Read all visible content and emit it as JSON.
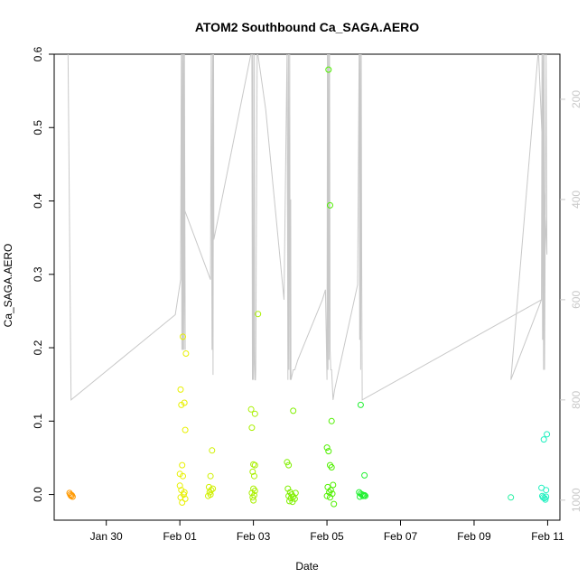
{
  "chart_data": {
    "type": "scatter",
    "title": "ATOM2 Southbound Ca_SAGA.AERO",
    "xlabel": "Date",
    "ylabel": "Ca_SAGA.AERO",
    "xlim": [
      "2017-01-28T14:00",
      "2017-02-11T08:00"
    ],
    "ylim": [
      -0.035,
      0.6
    ],
    "x_ticks": [
      {
        "date": "2017-01-30",
        "label": "Jan 30"
      },
      {
        "date": "2017-02-01",
        "label": "Feb 01"
      },
      {
        "date": "2017-02-03",
        "label": "Feb 03"
      },
      {
        "date": "2017-02-05",
        "label": "Feb 05"
      },
      {
        "date": "2017-02-07",
        "label": "Feb 07"
      },
      {
        "date": "2017-02-09",
        "label": "Feb 09"
      },
      {
        "date": "2017-02-11",
        "label": "Feb 11"
      }
    ],
    "y_ticks": [
      0.0,
      0.1,
      0.2,
      0.3,
      0.4,
      0.5,
      0.6
    ],
    "y_tick_labels": [
      "0.0",
      "0.1",
      "0.2",
      "0.3",
      "0.4",
      "0.5",
      "0.6"
    ],
    "y2_ticks": [
      200,
      400,
      600,
      800,
      1000
    ],
    "y2_range": [
      1040,
      110
    ],
    "grid": false,
    "marker": "open-circle",
    "points": [
      {
        "x": "2017-01-29T00:00",
        "y": 0.002,
        "color": "#ff9900"
      },
      {
        "x": "2017-01-29T01:00",
        "y": -0.002,
        "color": "#ff9900"
      },
      {
        "x": "2017-01-29T02:00",
        "y": -0.003,
        "color": "#ff9900"
      },
      {
        "x": "2017-01-29T00:30",
        "y": 0.0,
        "color": "#ff9900"
      },
      {
        "x": "2017-01-29T01:30",
        "y": -0.001,
        "color": "#ff9900"
      },
      {
        "x": "2017-02-01T00:30",
        "y": 0.143,
        "color": "#e8f000"
      },
      {
        "x": "2017-02-01T01:00",
        "y": 0.122,
        "color": "#e8f000"
      },
      {
        "x": "2017-02-01T03:00",
        "y": 0.125,
        "color": "#e8f000"
      },
      {
        "x": "2017-02-01T02:00",
        "y": 0.215,
        "color": "#e8f000"
      },
      {
        "x": "2017-02-01T04:00",
        "y": 0.192,
        "color": "#e8f000"
      },
      {
        "x": "2017-02-01T03:30",
        "y": 0.088,
        "color": "#e8f000"
      },
      {
        "x": "2017-02-01T01:30",
        "y": 0.04,
        "color": "#e8f000"
      },
      {
        "x": "2017-02-01T00:00",
        "y": 0.028,
        "color": "#e8f000"
      },
      {
        "x": "2017-02-01T02:00",
        "y": 0.025,
        "color": "#e8f000"
      },
      {
        "x": "2017-02-01T00:00",
        "y": 0.012,
        "color": "#e8f000"
      },
      {
        "x": "2017-02-01T01:00",
        "y": 0.006,
        "color": "#e8f000"
      },
      {
        "x": "2017-02-01T03:00",
        "y": 0.003,
        "color": "#e8f000"
      },
      {
        "x": "2017-02-01T02:30",
        "y": 0.0,
        "color": "#e8f000"
      },
      {
        "x": "2017-02-01T00:30",
        "y": -0.004,
        "color": "#e8f000"
      },
      {
        "x": "2017-02-01T01:30",
        "y": -0.011,
        "color": "#e8f000"
      },
      {
        "x": "2017-02-01T03:30",
        "y": -0.006,
        "color": "#e8f000"
      },
      {
        "x": "2017-02-01T21:00",
        "y": 0.06,
        "color": "#d0f000"
      },
      {
        "x": "2017-02-01T20:00",
        "y": 0.025,
        "color": "#d0f000"
      },
      {
        "x": "2017-02-01T19:00",
        "y": 0.01,
        "color": "#d0f000"
      },
      {
        "x": "2017-02-01T20:30",
        "y": 0.006,
        "color": "#d0f000"
      },
      {
        "x": "2017-02-01T21:30",
        "y": 0.008,
        "color": "#d0f000"
      },
      {
        "x": "2017-02-01T19:30",
        "y": 0.003,
        "color": "#d0f000"
      },
      {
        "x": "2017-02-01T20:00",
        "y": 0.0,
        "color": "#d0f000"
      },
      {
        "x": "2017-02-01T18:30",
        "y": -0.002,
        "color": "#d0f000"
      },
      {
        "x": "2017-02-02T22:30",
        "y": 0.116,
        "color": "#aaf000"
      },
      {
        "x": "2017-02-03T01:00",
        "y": 0.11,
        "color": "#aaf000"
      },
      {
        "x": "2017-02-02T23:00",
        "y": 0.091,
        "color": "#aaf000"
      },
      {
        "x": "2017-02-03T03:00",
        "y": 0.246,
        "color": "#aaf000"
      },
      {
        "x": "2017-02-03T00:00",
        "y": 0.041,
        "color": "#aaf000"
      },
      {
        "x": "2017-02-03T01:00",
        "y": 0.04,
        "color": "#aaf000"
      },
      {
        "x": "2017-02-02T23:30",
        "y": 0.031,
        "color": "#aaf000"
      },
      {
        "x": "2017-02-03T00:30",
        "y": 0.025,
        "color": "#aaf000"
      },
      {
        "x": "2017-02-03T00:00",
        "y": 0.008,
        "color": "#aaf000"
      },
      {
        "x": "2017-02-03T01:00",
        "y": 0.005,
        "color": "#aaf000"
      },
      {
        "x": "2017-02-02T23:00",
        "y": 0.002,
        "color": "#aaf000"
      },
      {
        "x": "2017-02-03T00:30",
        "y": -0.001,
        "color": "#aaf000"
      },
      {
        "x": "2017-02-02T23:30",
        "y": -0.004,
        "color": "#aaf000"
      },
      {
        "x": "2017-02-03T00:00",
        "y": -0.008,
        "color": "#aaf000"
      },
      {
        "x": "2017-02-03T22:00",
        "y": 0.044,
        "color": "#80f000"
      },
      {
        "x": "2017-02-03T23:00",
        "y": 0.04,
        "color": "#80f000"
      },
      {
        "x": "2017-02-04T02:00",
        "y": 0.114,
        "color": "#80f000"
      },
      {
        "x": "2017-02-03T22:30",
        "y": 0.008,
        "color": "#80f000"
      },
      {
        "x": "2017-02-04T00:00",
        "y": 0.003,
        "color": "#80f000"
      },
      {
        "x": "2017-02-04T01:00",
        "y": 0.0,
        "color": "#80f000"
      },
      {
        "x": "2017-02-03T23:00",
        "y": -0.002,
        "color": "#80f000"
      },
      {
        "x": "2017-02-04T00:30",
        "y": -0.005,
        "color": "#80f000"
      },
      {
        "x": "2017-02-04T02:00",
        "y": -0.003,
        "color": "#80f000"
      },
      {
        "x": "2017-02-04T03:00",
        "y": -0.006,
        "color": "#80f000"
      },
      {
        "x": "2017-02-03T23:30",
        "y": -0.009,
        "color": "#80f000"
      },
      {
        "x": "2017-02-04T01:30",
        "y": -0.01,
        "color": "#80f000"
      },
      {
        "x": "2017-02-04T03:30",
        "y": 0.002,
        "color": "#80f000"
      },
      {
        "x": "2017-02-05T01:00",
        "y": 0.579,
        "color": "#50f000"
      },
      {
        "x": "2017-02-05T02:00",
        "y": 0.394,
        "color": "#50f000"
      },
      {
        "x": "2017-02-05T03:00",
        "y": 0.1,
        "color": "#50f000"
      },
      {
        "x": "2017-02-05T00:00",
        "y": 0.064,
        "color": "#50f000"
      },
      {
        "x": "2017-02-05T01:00",
        "y": 0.059,
        "color": "#50f000"
      },
      {
        "x": "2017-02-05T02:00",
        "y": 0.04,
        "color": "#50f000"
      },
      {
        "x": "2017-02-05T03:00",
        "y": 0.037,
        "color": "#50f000"
      },
      {
        "x": "2017-02-05T04:00",
        "y": 0.013,
        "color": "#50f000"
      },
      {
        "x": "2017-02-05T00:30",
        "y": 0.01,
        "color": "#50f000"
      },
      {
        "x": "2017-02-05T02:30",
        "y": 0.006,
        "color": "#50f000"
      },
      {
        "x": "2017-02-05T01:30",
        "y": 0.003,
        "color": "#50f000"
      },
      {
        "x": "2017-02-05T03:30",
        "y": 0.001,
        "color": "#50f000"
      },
      {
        "x": "2017-02-05T00:00",
        "y": -0.002,
        "color": "#50f000"
      },
      {
        "x": "2017-02-05T02:00",
        "y": -0.004,
        "color": "#50f000"
      },
      {
        "x": "2017-02-05T04:30",
        "y": -0.013,
        "color": "#50f000"
      },
      {
        "x": "2017-02-05T22:00",
        "y": 0.122,
        "color": "#20f030"
      },
      {
        "x": "2017-02-06T00:30",
        "y": 0.026,
        "color": "#20f030"
      },
      {
        "x": "2017-02-05T21:00",
        "y": 0.003,
        "color": "#20f030"
      },
      {
        "x": "2017-02-05T22:00",
        "y": 0.001,
        "color": "#20f030"
      },
      {
        "x": "2017-02-05T23:00",
        "y": 0.0,
        "color": "#20f030"
      },
      {
        "x": "2017-02-06T00:00",
        "y": -0.001,
        "color": "#20f030"
      },
      {
        "x": "2017-02-06T01:00",
        "y": -0.002,
        "color": "#20f030"
      },
      {
        "x": "2017-02-05T21:30",
        "y": -0.003,
        "color": "#20f030"
      },
      {
        "x": "2017-02-05T23:30",
        "y": -0.002,
        "color": "#20f030"
      },
      {
        "x": "2017-02-06T00:30",
        "y": -0.001,
        "color": "#20f030"
      },
      {
        "x": "2017-02-10T00:00",
        "y": -0.004,
        "color": "#20f0a0"
      },
      {
        "x": "2017-02-10T20:00",
        "y": 0.009,
        "color": "#20f0c0"
      },
      {
        "x": "2017-02-10T23:00",
        "y": 0.006,
        "color": "#20f0c0"
      },
      {
        "x": "2017-02-10T21:30",
        "y": 0.075,
        "color": "#20f0c0"
      },
      {
        "x": "2017-02-10T23:30",
        "y": 0.082,
        "color": "#20f0c0"
      },
      {
        "x": "2017-02-10T20:30",
        "y": -0.002,
        "color": "#20f0c0"
      },
      {
        "x": "2017-02-10T21:00",
        "y": -0.004,
        "color": "#20f0c0"
      },
      {
        "x": "2017-02-10T22:00",
        "y": -0.005,
        "color": "#20f0c0"
      },
      {
        "x": "2017-02-10T22:30",
        "y": -0.007,
        "color": "#20f0c0"
      },
      {
        "x": "2017-02-10T23:00",
        "y": -0.003,
        "color": "#20f0c0"
      }
    ],
    "altitude_line": [
      [
        "2017-01-28T23:00",
        100
      ],
      [
        "2017-01-29T01:00",
        800
      ],
      [
        "2017-01-31T21:00",
        630
      ],
      [
        "2017-02-01T00:30",
        560
      ],
      [
        "2017-02-01T01:00",
        100
      ],
      [
        "2017-02-01T01:20",
        700
      ],
      [
        "2017-02-01T01:40",
        100
      ],
      [
        "2017-02-01T02:00",
        700
      ],
      [
        "2017-02-01T02:20",
        100
      ],
      [
        "2017-02-01T02:40",
        700
      ],
      [
        "2017-02-01T03:00",
        100
      ],
      [
        "2017-02-01T03:30",
        700
      ],
      [
        "2017-02-01T03:00",
        420
      ],
      [
        "2017-02-01T20:00",
        560
      ],
      [
        "2017-02-01T20:30",
        100
      ],
      [
        "2017-02-01T21:00",
        700
      ],
      [
        "2017-02-01T21:20",
        100
      ],
      [
        "2017-02-01T21:40",
        750
      ],
      [
        "2017-02-01T22:00",
        100
      ],
      [
        "2017-02-01T22:10",
        480
      ],
      [
        "2017-02-02T23:00",
        100
      ],
      [
        "2017-02-02T23:20",
        760
      ],
      [
        "2017-02-02T23:40",
        100
      ],
      [
        "2017-02-03T00:00",
        760
      ],
      [
        "2017-02-03T00:20",
        720
      ],
      [
        "2017-02-03T00:40",
        100
      ],
      [
        "2017-02-03T00:50",
        700
      ],
      [
        "2017-02-03T01:00",
        760
      ],
      [
        "2017-02-03T01:20",
        760
      ],
      [
        "2017-02-03T01:30",
        740
      ],
      [
        "2017-02-03T02:30",
        100
      ],
      [
        "2017-02-03T08:00",
        220
      ],
      [
        "2017-02-03T20:00",
        600
      ],
      [
        "2017-02-03T22:00",
        100
      ],
      [
        "2017-02-03T22:30",
        760
      ],
      [
        "2017-02-03T22:50",
        100
      ],
      [
        "2017-02-03T23:10",
        740
      ],
      [
        "2017-02-03T23:40",
        100
      ],
      [
        "2017-02-04T00:00",
        760
      ],
      [
        "2017-02-04T00:20",
        400
      ],
      [
        "2017-02-04T00:30",
        760
      ],
      [
        "2017-02-04T02:00",
        740
      ],
      [
        "2017-02-04T03:00",
        740
      ],
      [
        "2017-02-04T05:00",
        720
      ],
      [
        "2017-02-04T21:00",
        600
      ],
      [
        "2017-02-04T23:00",
        580
      ],
      [
        "2017-02-05T00:00",
        760
      ],
      [
        "2017-02-05T00:20",
        100
      ],
      [
        "2017-02-05T00:40",
        740
      ],
      [
        "2017-02-05T01:00",
        100
      ],
      [
        "2017-02-05T01:20",
        720
      ],
      [
        "2017-02-05T01:40",
        100
      ],
      [
        "2017-02-05T02:00",
        700
      ],
      [
        "2017-02-05T02:30",
        740
      ],
      [
        "2017-02-05T03:00",
        740
      ],
      [
        "2017-02-05T04:00",
        800
      ],
      [
        "2017-02-05T05:00",
        780
      ],
      [
        "2017-02-05T20:00",
        570
      ],
      [
        "2017-02-05T21:00",
        100
      ],
      [
        "2017-02-05T21:20",
        680
      ],
      [
        "2017-02-05T21:40",
        100
      ],
      [
        "2017-02-05T22:00",
        740
      ],
      [
        "2017-02-05T22:20",
        100
      ],
      [
        "2017-02-05T22:40",
        520
      ],
      [
        "2017-02-05T23:00",
        800
      ],
      [
        "2017-02-10T20:00",
        600
      ],
      [
        "2017-02-10T20:20",
        100
      ],
      [
        "2017-02-10T20:40",
        680
      ],
      [
        "2017-02-10T21:00",
        100
      ],
      [
        "2017-02-10T21:20",
        740
      ],
      [
        "2017-02-10T21:40",
        100
      ],
      [
        "2017-02-10T22:00",
        740
      ],
      [
        "2017-02-10T23:00",
        100
      ],
      [
        "2017-02-10T23:30",
        510
      ],
      [
        "2017-02-10T18:00",
        100
      ],
      [
        "2017-02-10T00:00",
        760
      ],
      [
        "2017-02-10T20:00",
        600
      ]
    ]
  }
}
